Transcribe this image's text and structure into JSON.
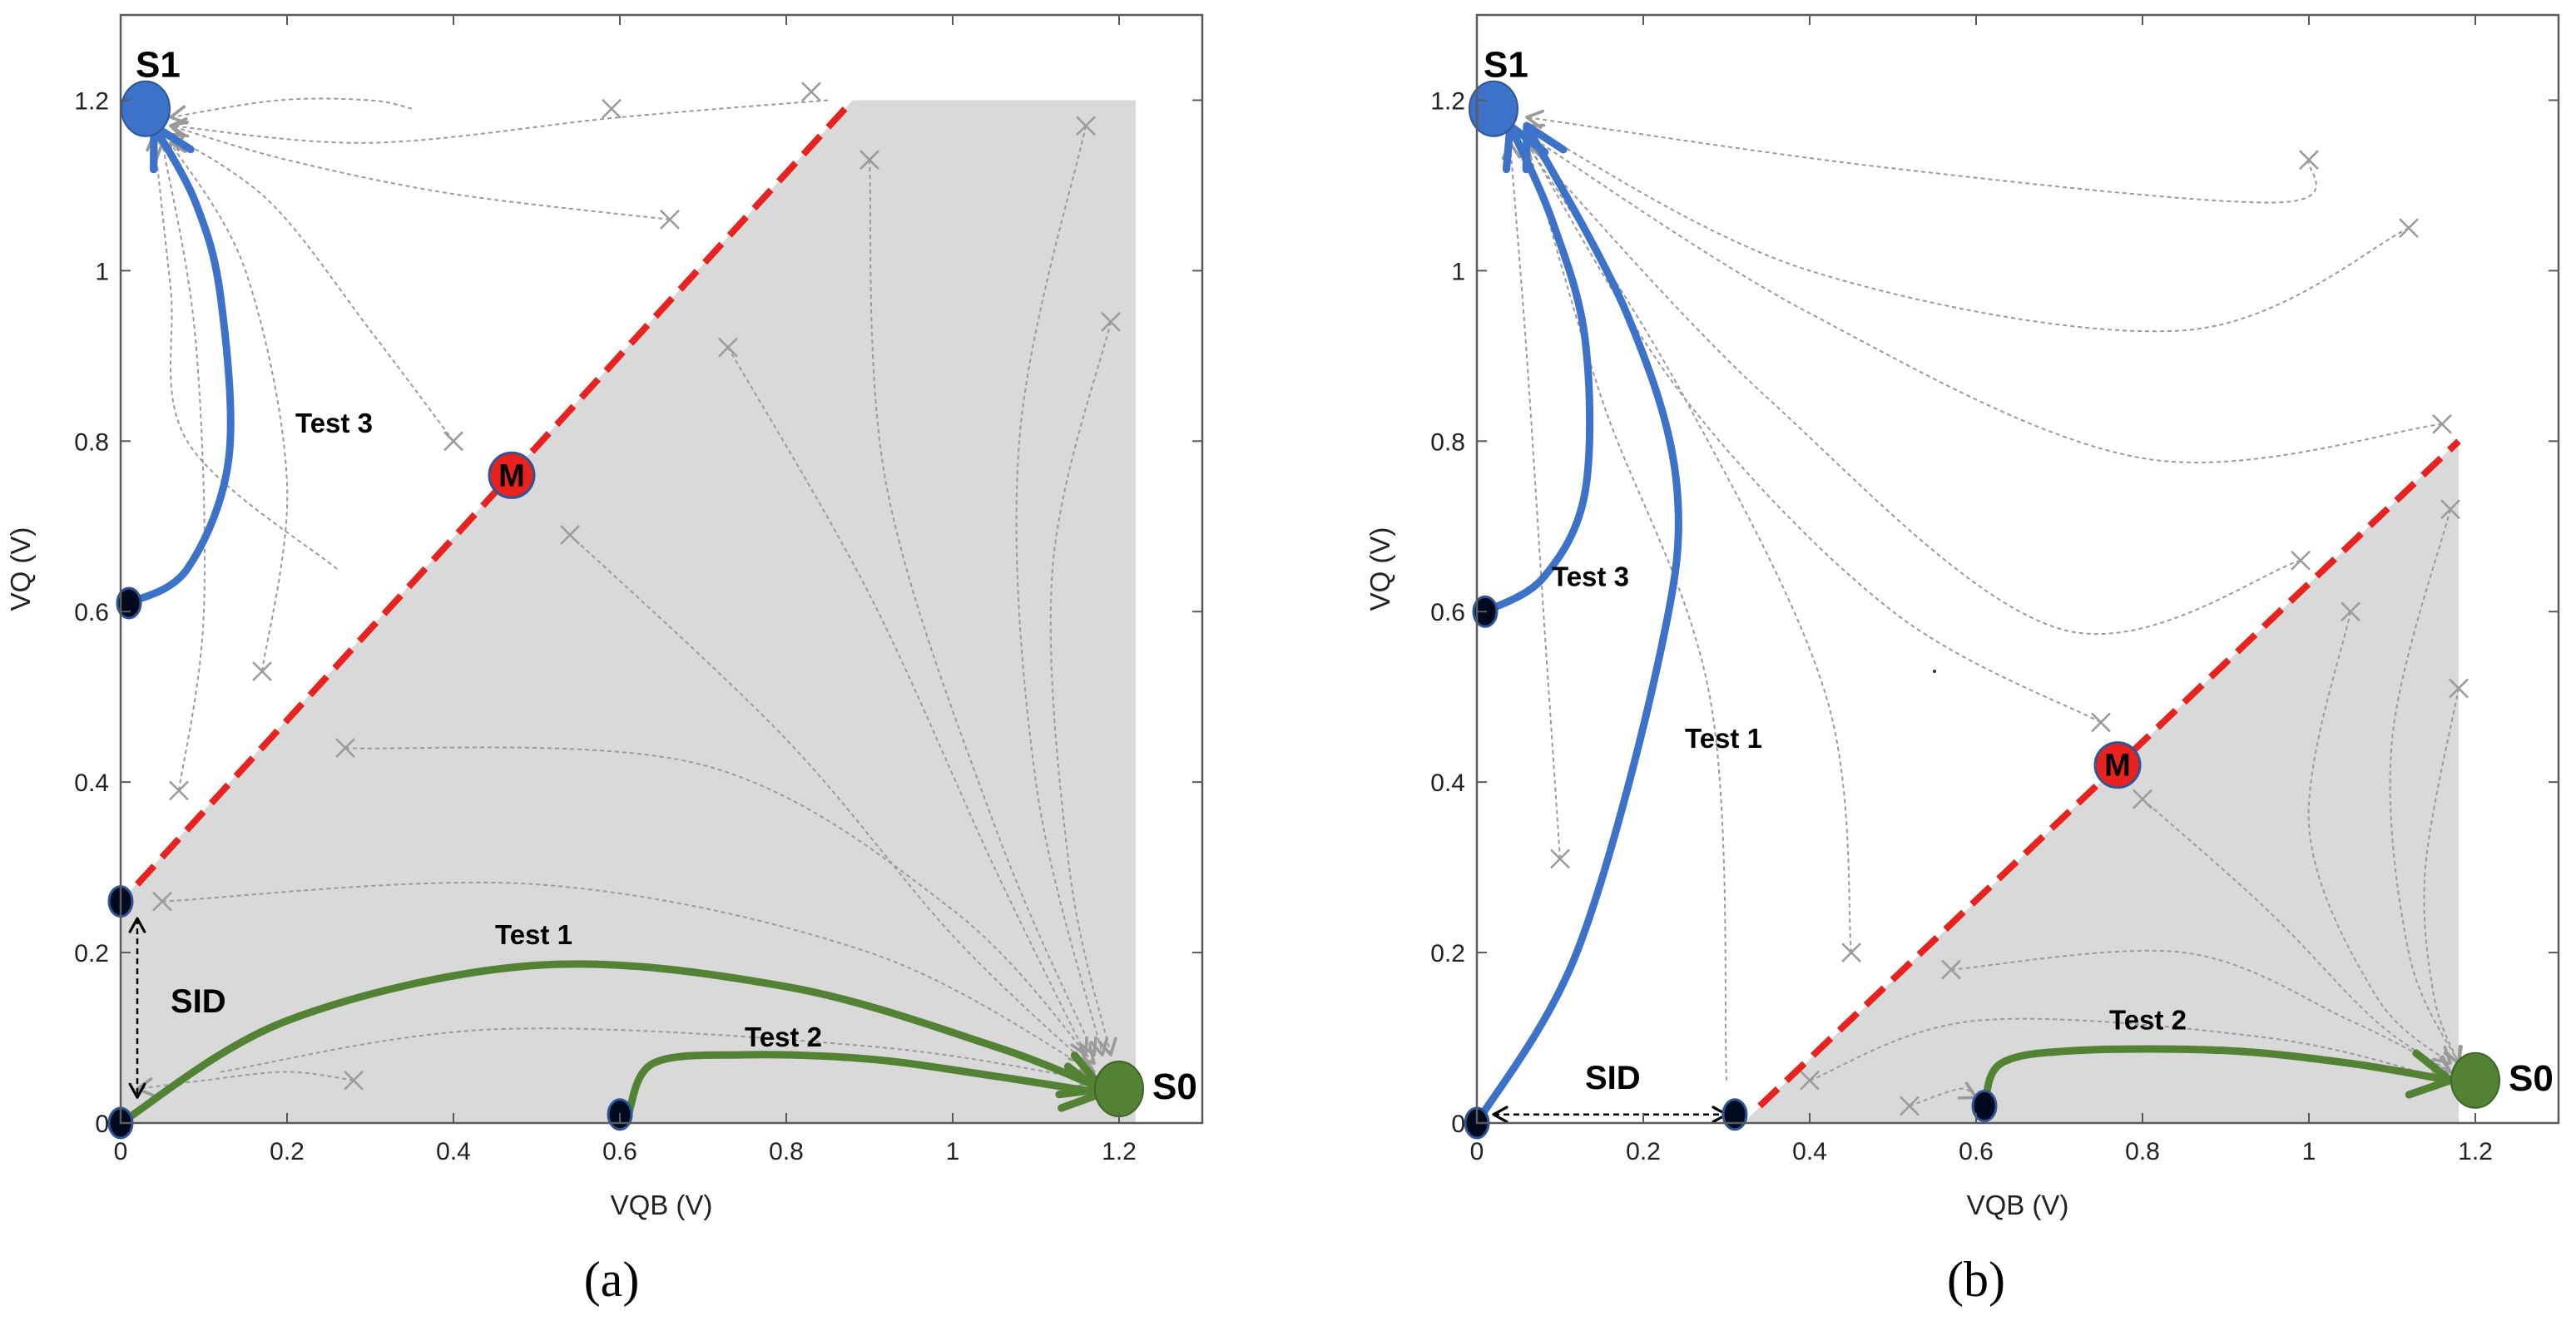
{
  "chart_data": [
    {
      "type": "phase-portrait",
      "panel_label": "a",
      "caption": "(a)",
      "xlabel": "VQB (V)",
      "ylabel": "VQ (V)",
      "xlim": [
        0,
        1.3
      ],
      "ylim": [
        0,
        1.3
      ],
      "xticks": [
        "0",
        "0.2",
        "0.4",
        "0.6",
        "0.8",
        "1",
        "1.2"
      ],
      "yticks": [
        "0",
        "0.2",
        "0.4",
        "0.6",
        "0.8",
        "1",
        "1.2"
      ],
      "shaded_region": [
        [
          0,
          0
        ],
        [
          0,
          0.26
        ],
        [
          0.88,
          1.2
        ],
        [
          1.22,
          1.2
        ],
        [
          1.22,
          0
        ]
      ],
      "separatrix": {
        "from": [
          0.02,
          0.28
        ],
        "to": [
          0.88,
          1.2
        ],
        "color": "#e8231f"
      },
      "states": [
        {
          "name": "S1",
          "x": 0.03,
          "y": 1.19,
          "color": "#3d72c9"
        },
        {
          "name": "S0",
          "x": 1.2,
          "y": 0.04,
          "color": "#548235"
        },
        {
          "name": "M",
          "x": 0.47,
          "y": 0.76,
          "color": "#e8231f"
        }
      ],
      "start_points": [
        {
          "x": 0.0,
          "y": 0.26
        },
        {
          "x": 0.0,
          "y": 0.0
        },
        {
          "x": 0.6,
          "y": 0.01
        },
        {
          "x": 0.01,
          "y": 0.61
        }
      ],
      "trajectories": [
        {
          "name": "Test 1",
          "color": "#548235",
          "label_at": [
            0.45,
            0.21
          ],
          "points": [
            [
              0.0,
              0.0
            ],
            [
              0.2,
              0.12
            ],
            [
              0.5,
              0.185
            ],
            [
              0.8,
              0.16
            ],
            [
              1.05,
              0.09
            ],
            [
              1.18,
              0.04
            ]
          ]
        },
        {
          "name": "Test 2",
          "color": "#548235",
          "label_at": [
            0.75,
            0.09
          ],
          "points": [
            [
              0.61,
              0.01
            ],
            [
              0.64,
              0.07
            ],
            [
              0.75,
              0.08
            ],
            [
              0.9,
              0.075
            ],
            [
              1.05,
              0.055
            ],
            [
              1.18,
              0.035
            ]
          ]
        },
        {
          "name": "Test 3",
          "color": "#3d72c9",
          "label_at": [
            0.21,
            0.81
          ],
          "points": [
            [
              0.01,
              0.61
            ],
            [
              0.08,
              0.65
            ],
            [
              0.13,
              0.78
            ],
            [
              0.12,
              0.97
            ],
            [
              0.09,
              1.08
            ],
            [
              0.04,
              1.17
            ]
          ]
        }
      ],
      "sid": {
        "label": "SID",
        "from": [
          0.02,
          0.24
        ],
        "to": [
          0.02,
          0.03
        ],
        "label_at": [
          0.06,
          0.13
        ]
      },
      "streamlines": [
        {
          "points": [
            [
              0.35,
              1.19
            ],
            [
              0.3,
              1.2
            ],
            [
              0.19,
              1.2
            ],
            [
              0.06,
              1.18
            ]
          ],
          "x_at": [
            0.59,
            1.19
          ]
        },
        {
          "points": [
            [
              0.85,
              1.2
            ],
            [
              0.6,
              1.18
            ],
            [
              0.3,
              1.15
            ],
            [
              0.06,
              1.17
            ]
          ],
          "x_at": [
            0.83,
            1.21
          ]
        },
        {
          "points": [
            [
              0.66,
              1.06
            ],
            [
              0.4,
              1.09
            ],
            [
              0.2,
              1.13
            ],
            [
              0.06,
              1.17
            ]
          ],
          "x_at": [
            0.66,
            1.06
          ]
        },
        {
          "points": [
            [
              0.4,
              0.8
            ],
            [
              0.3,
              0.93
            ],
            [
              0.18,
              1.08
            ],
            [
              0.06,
              1.16
            ]
          ],
          "x_at": [
            0.4,
            0.8
          ]
        },
        {
          "points": [
            [
              0.17,
              0.53
            ],
            [
              0.2,
              0.75
            ],
            [
              0.15,
              1.0
            ],
            [
              0.06,
              1.15
            ]
          ],
          "x_at": [
            0.17,
            0.53
          ]
        },
        {
          "points": [
            [
              0.07,
              0.39
            ],
            [
              0.1,
              0.6
            ],
            [
              0.09,
              0.92
            ],
            [
              0.05,
              1.15
            ]
          ],
          "x_at": [
            0.07,
            0.39
          ]
        },
        {
          "points": [
            [
              0.26,
              0.65
            ],
            [
              0.08,
              0.8
            ],
            [
              0.06,
              0.98
            ],
            [
              0.04,
              1.16
            ]
          ]
        },
        {
          "points": [
            [
              0.73,
              0.91
            ],
            [
              0.9,
              0.62
            ],
            [
              1.05,
              0.3
            ],
            [
              1.16,
              0.08
            ]
          ],
          "x_at": [
            0.73,
            0.91
          ]
        },
        {
          "points": [
            [
              0.9,
              1.13
            ],
            [
              0.92,
              0.75
            ],
            [
              1.05,
              0.35
            ],
            [
              1.17,
              0.08
            ]
          ],
          "x_at": [
            0.9,
            1.13
          ]
        },
        {
          "points": [
            [
              1.16,
              1.17
            ],
            [
              1.08,
              0.8
            ],
            [
              1.1,
              0.4
            ],
            [
              1.18,
              0.08
            ]
          ],
          "x_at": [
            1.16,
            1.17
          ]
        },
        {
          "points": [
            [
              1.19,
              0.94
            ],
            [
              1.12,
              0.65
            ],
            [
              1.14,
              0.3
            ],
            [
              1.19,
              0.08
            ]
          ],
          "x_at": [
            1.19,
            0.94
          ]
        },
        {
          "points": [
            [
              0.54,
              0.69
            ],
            [
              0.8,
              0.45
            ],
            [
              1.0,
              0.22
            ],
            [
              1.16,
              0.07
            ]
          ],
          "x_at": [
            0.54,
            0.69
          ]
        },
        {
          "points": [
            [
              0.27,
              0.44
            ],
            [
              0.7,
              0.42
            ],
            [
              1.0,
              0.25
            ],
            [
              1.17,
              0.07
            ]
          ],
          "x_at": [
            0.27,
            0.44
          ]
        },
        {
          "points": [
            [
              0.05,
              0.26
            ],
            [
              0.5,
              0.28
            ],
            [
              0.9,
              0.2
            ],
            [
              1.17,
              0.06
            ]
          ],
          "x_at": [
            0.05,
            0.26
          ]
        },
        {
          "points": [
            [
              0.12,
              0.06
            ],
            [
              0.45,
              0.11
            ],
            [
              0.9,
              0.09
            ],
            [
              1.17,
              0.05
            ]
          ]
        },
        {
          "points": [
            [
              0.28,
              0.05
            ],
            [
              0.2,
              0.06
            ],
            [
              0.1,
              0.05
            ],
            [
              0.02,
              0.04
            ]
          ],
          "x_at": [
            0.28,
            0.05
          ]
        }
      ]
    },
    {
      "type": "phase-portrait",
      "panel_label": "b",
      "caption": "(b)",
      "xlabel": "VQB (V)",
      "ylabel": "VQ (V)",
      "xlim": [
        0,
        1.3
      ],
      "ylim": [
        0,
        1.3
      ],
      "xticks": [
        "0",
        "0.2",
        "0.4",
        "0.6",
        "0.8",
        "1",
        "1.2"
      ],
      "yticks": [
        "0",
        "0.2",
        "0.4",
        "0.6",
        "0.8",
        "1",
        "1.2"
      ],
      "shaded_region": [
        [
          0.32,
          0
        ],
        [
          1.18,
          0.8
        ],
        [
          1.18,
          0
        ]
      ],
      "separatrix": {
        "from": [
          0.34,
          0.02
        ],
        "to": [
          1.18,
          0.8
        ],
        "color": "#e8231f"
      },
      "states": [
        {
          "name": "S1",
          "x": 0.02,
          "y": 1.19,
          "color": "#3d72c9"
        },
        {
          "name": "S0",
          "x": 1.2,
          "y": 0.05,
          "color": "#548235"
        },
        {
          "name": "M",
          "x": 0.77,
          "y": 0.42,
          "color": "#e8231f"
        }
      ],
      "start_points": [
        {
          "x": 0.0,
          "y": 0.0
        },
        {
          "x": 0.31,
          "y": 0.01
        },
        {
          "x": 0.61,
          "y": 0.02
        },
        {
          "x": 0.01,
          "y": 0.6
        }
      ],
      "trajectories": [
        {
          "name": "Test 1",
          "color": "#3d72c9",
          "label_at": [
            0.25,
            0.44
          ],
          "points": [
            [
              0.0,
              0.0
            ],
            [
              0.12,
              0.2
            ],
            [
              0.22,
              0.55
            ],
            [
              0.24,
              0.75
            ],
            [
              0.18,
              0.95
            ],
            [
              0.06,
              1.17
            ]
          ]
        },
        {
          "name": "Test 2",
          "color": "#548235",
          "label_at": [
            0.76,
            0.11
          ],
          "points": [
            [
              0.61,
              0.02
            ],
            [
              0.63,
              0.07
            ],
            [
              0.72,
              0.085
            ],
            [
              0.9,
              0.085
            ],
            [
              1.05,
              0.07
            ],
            [
              1.17,
              0.05
            ]
          ]
        },
        {
          "name": "Test 3",
          "color": "#3d72c9",
          "label_at": [
            0.09,
            0.63
          ],
          "points": [
            [
              0.01,
              0.6
            ],
            [
              0.08,
              0.64
            ],
            [
              0.13,
              0.74
            ],
            [
              0.13,
              0.92
            ],
            [
              0.09,
              1.06
            ],
            [
              0.04,
              1.17
            ]
          ]
        }
      ],
      "sid": {
        "label": "SID",
        "from": [
          0.02,
          0.01
        ],
        "to": [
          0.3,
          0.01
        ],
        "label_at": [
          0.13,
          0.04
        ]
      },
      "stray_mark": {
        "x": 0.55,
        "y": 0.53
      },
      "streamlines": [
        {
          "points": [
            [
              1.0,
              1.13
            ],
            [
              0.96,
              1.08
            ],
            [
              0.5,
              1.12
            ],
            [
              0.06,
              1.18
            ]
          ],
          "x_at": [
            1.0,
            1.13
          ]
        },
        {
          "points": [
            [
              1.12,
              1.05
            ],
            [
              0.85,
              0.93
            ],
            [
              0.4,
              1.0
            ],
            [
              0.06,
              1.17
            ]
          ],
          "x_at": [
            1.12,
            1.05
          ]
        },
        {
          "points": [
            [
              1.16,
              0.82
            ],
            [
              0.8,
              0.78
            ],
            [
              0.4,
              0.95
            ],
            [
              0.06,
              1.16
            ]
          ],
          "x_at": [
            1.16,
            0.82
          ]
        },
        {
          "points": [
            [
              0.99,
              0.66
            ],
            [
              0.7,
              0.58
            ],
            [
              0.35,
              0.85
            ],
            [
              0.06,
              1.15
            ]
          ],
          "x_at": [
            0.99,
            0.66
          ]
        },
        {
          "points": [
            [
              0.75,
              0.47
            ],
            [
              0.5,
              0.6
            ],
            [
              0.25,
              0.85
            ],
            [
              0.06,
              1.15
            ]
          ],
          "x_at": [
            0.75,
            0.47
          ]
        },
        {
          "points": [
            [
              0.1,
              0.31
            ],
            [
              0.08,
              0.6
            ],
            [
              0.06,
              0.9
            ],
            [
              0.04,
              1.15
            ]
          ],
          "x_at": [
            0.1,
            0.31
          ]
        },
        {
          "points": [
            [
              0.3,
              0.05
            ],
            [
              0.28,
              0.5
            ],
            [
              0.15,
              0.85
            ],
            [
              0.06,
              1.15
            ]
          ]
        },
        {
          "points": [
            [
              0.45,
              0.2
            ],
            [
              0.42,
              0.5
            ],
            [
              0.25,
              0.85
            ],
            [
              0.06,
              1.15
            ]
          ],
          "x_at": [
            0.45,
            0.2
          ]
        },
        {
          "points": [
            [
              1.05,
              0.6
            ],
            [
              1.0,
              0.35
            ],
            [
              1.08,
              0.15
            ],
            [
              1.17,
              0.07
            ]
          ],
          "x_at": [
            1.05,
            0.6
          ]
        },
        {
          "points": [
            [
              1.17,
              0.72
            ],
            [
              1.1,
              0.45
            ],
            [
              1.12,
              0.2
            ],
            [
              1.18,
              0.07
            ]
          ],
          "x_at": [
            1.17,
            0.72
          ]
        },
        {
          "points": [
            [
              1.18,
              0.51
            ],
            [
              1.14,
              0.3
            ],
            [
              1.15,
              0.15
            ],
            [
              1.18,
              0.07
            ]
          ],
          "x_at": [
            1.18,
            0.51
          ]
        },
        {
          "points": [
            [
              0.8,
              0.38
            ],
            [
              0.95,
              0.25
            ],
            [
              1.08,
              0.12
            ],
            [
              1.17,
              0.06
            ]
          ],
          "x_at": [
            0.8,
            0.38
          ]
        },
        {
          "points": [
            [
              0.57,
              0.18
            ],
            [
              0.85,
              0.2
            ],
            [
              1.05,
              0.12
            ],
            [
              1.17,
              0.06
            ]
          ],
          "x_at": [
            0.57,
            0.18
          ]
        },
        {
          "points": [
            [
              0.4,
              0.05
            ],
            [
              0.6,
              0.12
            ],
            [
              0.95,
              0.1
            ],
            [
              1.17,
              0.05
            ]
          ],
          "x_at": [
            0.4,
            0.05
          ]
        },
        {
          "points": [
            [
              0.52,
              0.02
            ],
            [
              0.58,
              0.04
            ],
            [
              0.6,
              0.03
            ]
          ],
          "x_at": [
            0.52,
            0.02
          ]
        }
      ]
    }
  ]
}
